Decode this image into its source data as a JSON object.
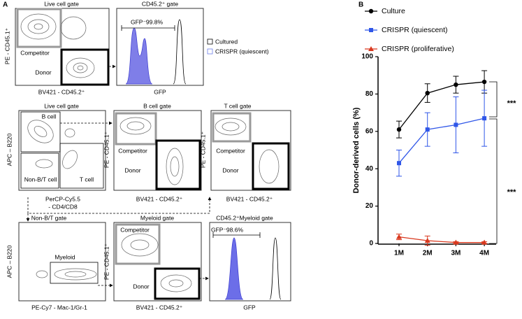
{
  "panel_a": {
    "label": "A",
    "plots": [
      {
        "title": "Live cell gate",
        "x_label": "BV421 - CD45.2⁺",
        "y_label": "PE - CD45.1⁺",
        "gates": [
          "Competitor",
          "Donor"
        ]
      },
      {
        "title": "CD45.2⁺ gate",
        "x_label": "GFP",
        "gates": [
          "GFP⁻99.8%"
        ]
      },
      {
        "title": "Live cell gate",
        "x_label": "PerCP-Cy5.5",
        "x_label_2": "- CD4/CD8",
        "y_label": "APC – B220",
        "gates": [
          "B cell",
          "Non-B/T cell",
          "T cell"
        ]
      },
      {
        "title": "B cell gate",
        "x_label": "BV421 - CD45.2⁺",
        "y_label": "PE - CD45.1⁺",
        "gates": [
          "Competitor",
          "Donor"
        ]
      },
      {
        "title": "T cell gate",
        "x_label": "BV421 - CD45.2⁺",
        "y_label": "PE - CD45.1⁺",
        "gates": [
          "Competitor",
          "Donor"
        ]
      },
      {
        "title": "Non-B/T gate",
        "x_label": "PE-Cy7 - Mac-1/Gr-1",
        "y_label": "APC – B220",
        "gates": [
          "Myeloid"
        ]
      },
      {
        "title": "Myeloid gate",
        "x_label": "BV421 - CD45.2⁺",
        "y_label": "PE - CD45.1⁺",
        "gates": [
          "Competitor",
          "Donor"
        ]
      },
      {
        "title": "CD45.2⁺Myeloid gate",
        "x_label": "GFP",
        "gates": [
          "GFP⁻98.6%"
        ]
      }
    ],
    "legend": [
      "Cultured",
      "CRISPR (quiescent)"
    ]
  },
  "chart_data": {
    "type": "line",
    "panel_label": "B",
    "y_label": "Donor-derived cells (%)",
    "categories": [
      "1M",
      "2M",
      "3M",
      "4M"
    ],
    "ylim": [
      0,
      100
    ],
    "yticks": [
      0,
      20,
      40,
      60,
      80,
      100
    ],
    "series": [
      {
        "name": "Culture",
        "color": "#000000",
        "marker": "circle",
        "values": [
          61,
          80.5,
          85,
          86.5
        ],
        "errors": [
          4.5,
          5,
          4.5,
          6
        ]
      },
      {
        "name": "CRISPR (quiescent)",
        "color": "#2f56e8",
        "marker": "square",
        "values": [
          43,
          61,
          63.5,
          67
        ],
        "errors": [
          7,
          9,
          15,
          15
        ]
      },
      {
        "name": "CRISPR (proliferative)",
        "color": "#d9381e",
        "marker": "triangle",
        "values": [
          3.5,
          1.5,
          0.5,
          0.5
        ],
        "errors": [
          1.5,
          2.5,
          0.5,
          0.5
        ]
      }
    ],
    "annotations": [
      "***",
      "***"
    ]
  }
}
